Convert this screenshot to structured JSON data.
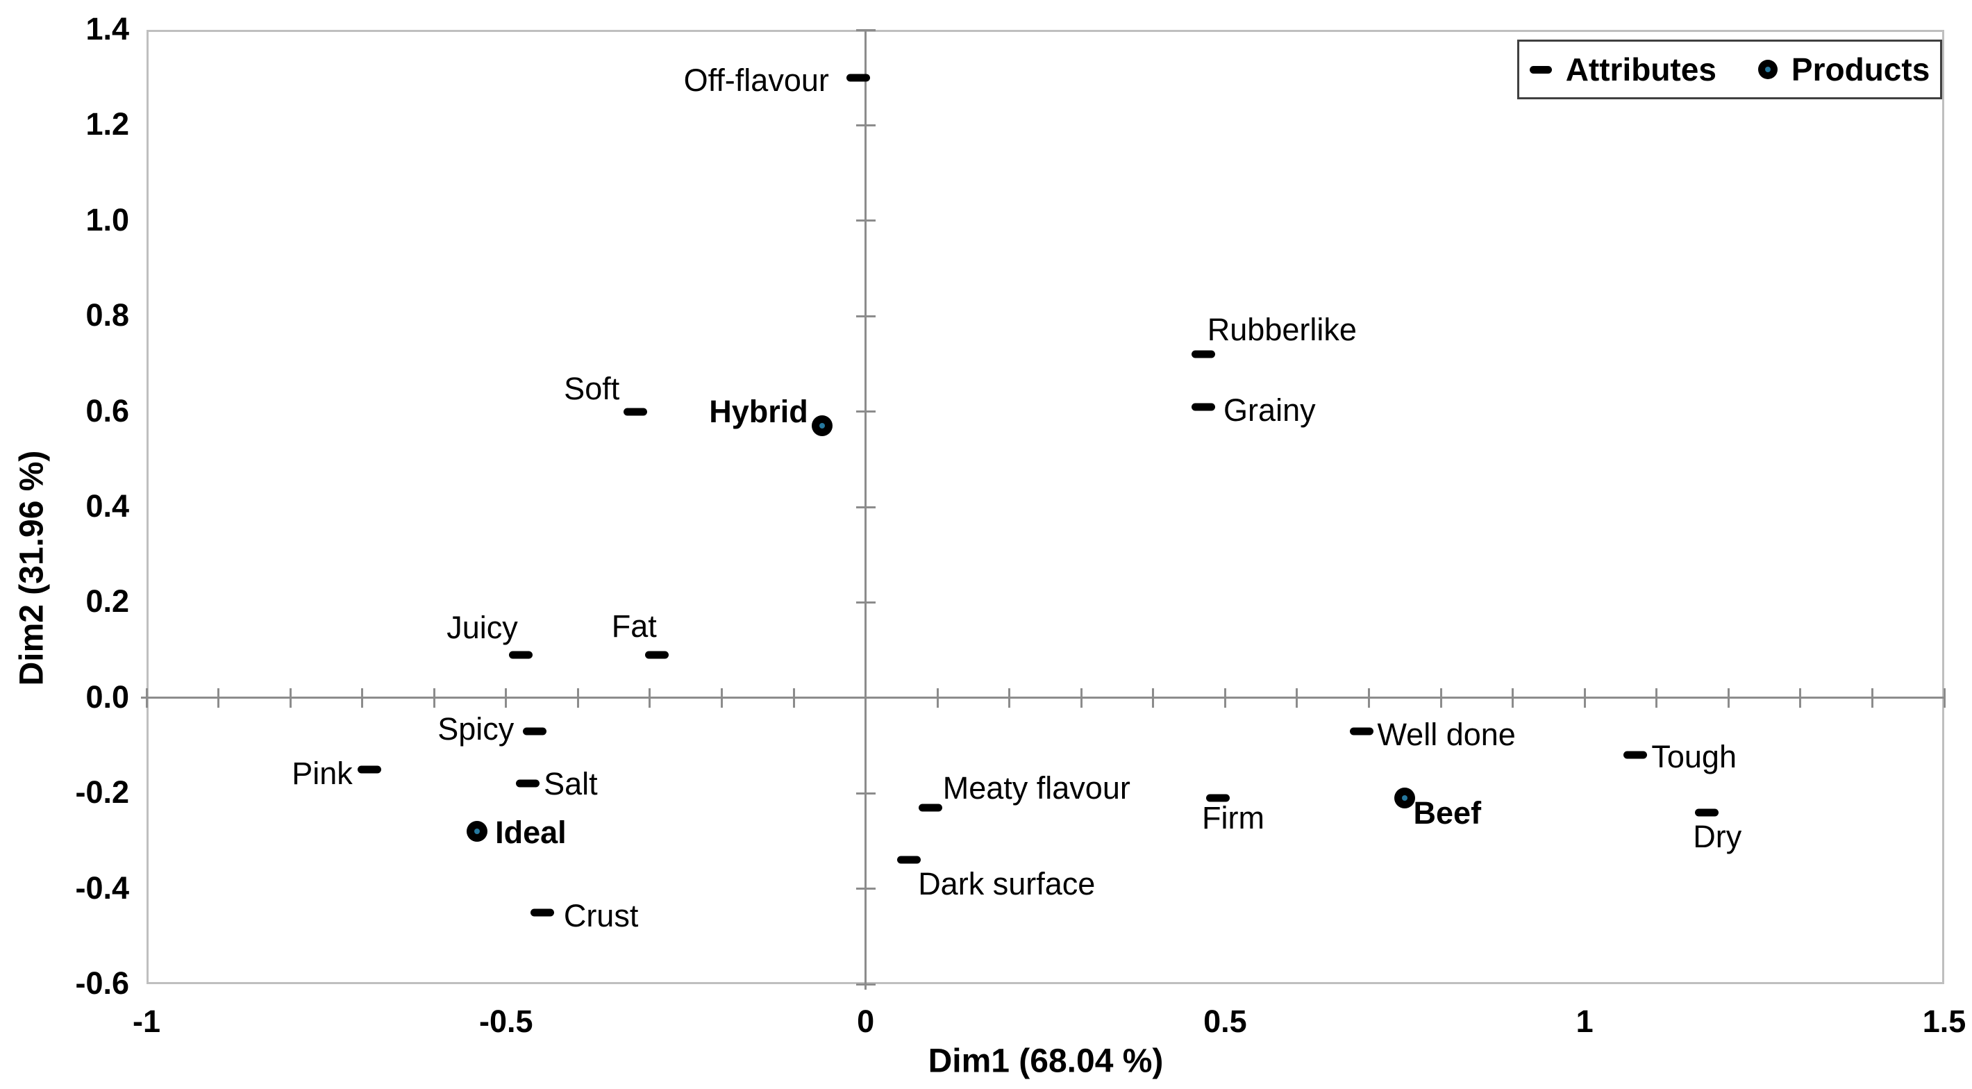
{
  "chart_data": {
    "type": "scatter",
    "title": "",
    "xlabel": "Dim1 (68.04 %)",
    "ylabel": "Dim2 (31.96 %)",
    "xlim": [
      -1,
      1.5
    ],
    "ylim": [
      -0.6,
      1.4
    ],
    "grid": false,
    "x_tick_values": [
      -1,
      -0.5,
      0,
      0.5,
      1,
      1.5
    ],
    "x_tick_labels": [
      "-1",
      "-0.5",
      "0",
      "0.5",
      "1",
      "1.5"
    ],
    "y_tick_values": [
      1.4,
      1.2,
      1.0,
      0.8,
      0.6,
      0.4,
      0.2,
      0.0,
      -0.2,
      -0.4,
      -0.6
    ],
    "y_tick_labels": [
      "1.4",
      "1.2",
      "1.0",
      "0.8",
      "0.6",
      "0.4",
      "0.2",
      "0.0",
      "-0.2",
      "-0.4",
      "-0.6"
    ],
    "x_minor_tick_step": 0.1,
    "y_minor_tick_step": 0.2,
    "colors": {
      "marker": "#000000",
      "product_center_dot": "#26789e",
      "plot_border": "#bfbfbf",
      "zero_line": "#8c8c8c",
      "text": "#000000"
    },
    "legend": {
      "position": "top-right",
      "items": [
        {
          "label": "Attributes",
          "marker": "dash"
        },
        {
          "label": "Products",
          "marker": "circle"
        }
      ]
    },
    "series": [
      {
        "name": "Attributes",
        "marker": "dash",
        "points": [
          {
            "label": "Off-flavour",
            "x": -0.01,
            "y": 1.3,
            "label_offset": [
              -147,
              4
            ]
          },
          {
            "label": "Soft",
            "x": -0.32,
            "y": 0.6,
            "label_offset": [
              -63,
              -33
            ]
          },
          {
            "label": "Rubberlike",
            "x": 0.47,
            "y": 0.72,
            "label_offset": [
              113,
              -35
            ]
          },
          {
            "label": "Grainy",
            "x": 0.47,
            "y": 0.61,
            "label_offset": [
              95,
              5
            ]
          },
          {
            "label": "Juicy",
            "x": -0.48,
            "y": 0.09,
            "label_offset": [
              -55,
              -39
            ]
          },
          {
            "label": "Fat",
            "x": -0.29,
            "y": 0.09,
            "label_offset": [
              -33,
              -41
            ]
          },
          {
            "label": "Spicy",
            "x": -0.46,
            "y": -0.07,
            "label_offset": [
              -85,
              -3
            ]
          },
          {
            "label": "Pink",
            "x": -0.69,
            "y": -0.15,
            "label_offset": [
              -68,
              6
            ]
          },
          {
            "label": "Salt",
            "x": -0.47,
            "y": -0.18,
            "label_offset": [
              62,
              1
            ]
          },
          {
            "label": "Crust",
            "x": -0.45,
            "y": -0.45,
            "label_offset": [
              85,
              5
            ]
          },
          {
            "label": "Meaty flavour",
            "x": 0.09,
            "y": -0.23,
            "label_offset": [
              153,
              -28
            ]
          },
          {
            "label": "Dark surface",
            "x": 0.06,
            "y": -0.34,
            "label_offset": [
              141,
              35
            ]
          },
          {
            "label": "Firm",
            "x": 0.49,
            "y": -0.21,
            "label_offset": [
              22,
              29
            ]
          },
          {
            "label": "Well done",
            "x": 0.69,
            "y": -0.07,
            "label_offset": [
              122,
              5
            ]
          },
          {
            "label": "Tough",
            "x": 1.07,
            "y": -0.12,
            "label_offset": [
              85,
              3
            ]
          },
          {
            "label": "Dry",
            "x": 1.17,
            "y": -0.24,
            "label_offset": [
              15,
              35
            ]
          }
        ]
      },
      {
        "name": "Products",
        "marker": "circle",
        "points": [
          {
            "label": "Hybrid",
            "x": -0.06,
            "y": 0.57,
            "label_offset": [
              -92,
              -20
            ]
          },
          {
            "label": "Ideal",
            "x": -0.54,
            "y": -0.28,
            "label_offset": [
              77,
              2
            ]
          },
          {
            "label": "Beef",
            "x": 0.75,
            "y": -0.21,
            "label_offset": [
              61,
              22
            ]
          }
        ]
      }
    ]
  }
}
